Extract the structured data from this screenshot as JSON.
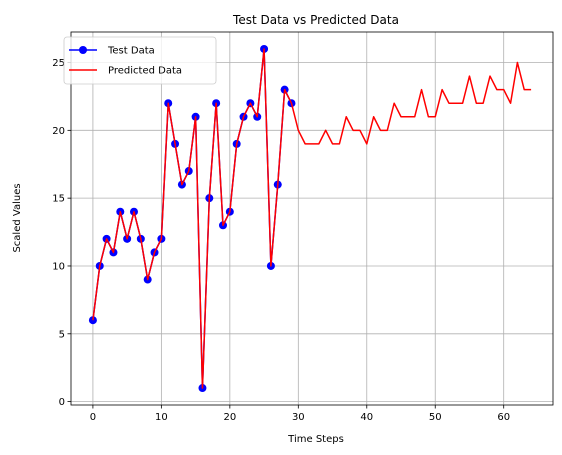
{
  "chart_data": {
    "type": "line",
    "title": "Test Data vs Predicted Data",
    "xlabel": "Time Steps",
    "ylabel": "Scaled Values",
    "xlim": [
      -3.2,
      67.2
    ],
    "ylim": [
      -0.25,
      27.25
    ],
    "xticks": [
      0,
      10,
      20,
      30,
      40,
      50,
      60
    ],
    "yticks": [
      0,
      5,
      10,
      15,
      20,
      25
    ],
    "grid": true,
    "legend": "top-left",
    "series": [
      {
        "name": "Test Data",
        "color": "#0000ff",
        "marker": "circle",
        "x": [
          0,
          1,
          2,
          3,
          4,
          5,
          6,
          7,
          8,
          9,
          10,
          11,
          12,
          13,
          14,
          15,
          16,
          17,
          18,
          19,
          20,
          21,
          22,
          23,
          24,
          25,
          26,
          27,
          28,
          29
        ],
        "values": [
          6,
          10,
          12,
          11,
          14,
          12,
          14,
          12,
          9,
          11,
          12,
          22,
          19,
          16,
          17,
          21,
          1,
          15,
          22,
          13,
          14,
          19,
          21,
          22,
          21,
          26,
          10,
          16,
          23,
          22
        ]
      },
      {
        "name": "Predicted Data",
        "color": "#ff0000",
        "marker": "none",
        "x": [
          0,
          1,
          2,
          3,
          4,
          5,
          6,
          7,
          8,
          9,
          10,
          11,
          12,
          13,
          14,
          15,
          16,
          17,
          18,
          19,
          20,
          21,
          22,
          23,
          24,
          25,
          26,
          27,
          28,
          29,
          30,
          31,
          32,
          33,
          34,
          35,
          36,
          37,
          38,
          39,
          40,
          41,
          42,
          43,
          44,
          45,
          46,
          47,
          48,
          49,
          50,
          51,
          52,
          53,
          54,
          55,
          56,
          57,
          58,
          59,
          60,
          61,
          62,
          63,
          64
        ],
        "values": [
          6,
          10,
          12,
          11,
          14,
          12,
          14,
          12,
          9,
          11,
          12,
          22,
          19,
          16,
          17,
          21,
          1,
          15,
          22,
          13,
          14,
          19,
          21,
          22,
          21,
          26,
          10,
          16,
          23,
          22,
          20,
          19,
          19,
          19,
          20,
          19,
          19,
          21,
          20,
          20,
          19,
          21,
          20,
          20,
          22,
          21,
          21,
          21,
          23,
          21,
          21,
          23,
          22,
          22,
          22,
          24,
          22,
          22,
          24,
          23,
          23,
          22,
          25,
          23,
          23
        ]
      }
    ]
  }
}
